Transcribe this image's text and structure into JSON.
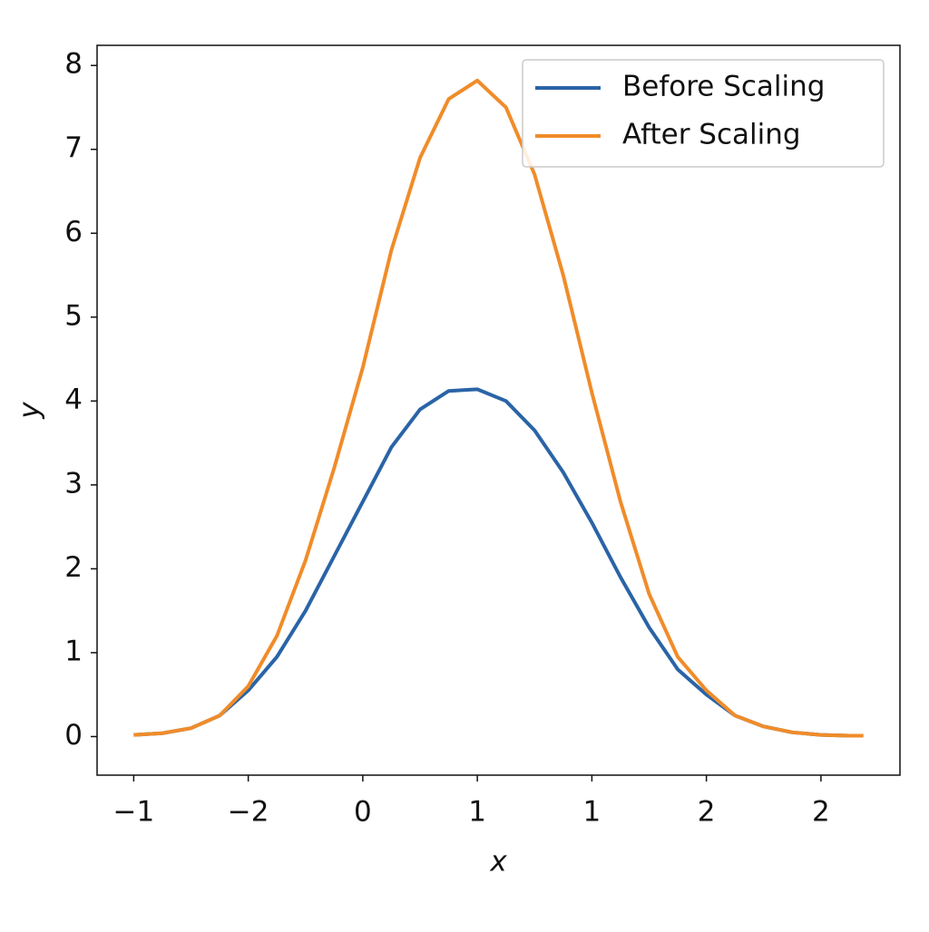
{
  "chart_data": {
    "type": "line",
    "x": [
      0,
      0.25,
      0.5,
      0.75,
      1.0,
      1.25,
      1.5,
      1.75,
      2.0,
      2.25,
      2.5,
      2.75,
      3.0,
      3.25,
      3.5,
      3.75,
      4.0,
      4.25,
      4.5,
      4.75,
      5.0,
      5.25,
      5.5,
      5.75,
      6.0,
      6.25,
      6.37
    ],
    "series": [
      {
        "name": "Before Scaling",
        "color": "#2a64a6",
        "values": [
          0.02,
          0.04,
          0.1,
          0.25,
          0.55,
          0.95,
          1.5,
          2.15,
          2.8,
          3.45,
          3.9,
          4.12,
          4.14,
          4.0,
          3.65,
          3.15,
          2.55,
          1.9,
          1.3,
          0.8,
          0.5,
          0.25,
          0.12,
          0.05,
          0.02,
          0.01,
          0.01
        ]
      },
      {
        "name": "After Scaling",
        "color": "#f08c2a",
        "values": [
          0.02,
          0.04,
          0.1,
          0.25,
          0.6,
          1.2,
          2.1,
          3.2,
          4.4,
          5.8,
          6.9,
          7.6,
          7.82,
          7.5,
          6.7,
          5.5,
          4.1,
          2.8,
          1.7,
          0.95,
          0.55,
          0.25,
          0.12,
          0.05,
          0.02,
          0.01,
          0.01
        ]
      }
    ],
    "x_label": "x",
    "y_label": "y",
    "xlim": [
      -0.32,
      6.69
    ],
    "ylim": [
      -0.46,
      8.24
    ],
    "xticks": [
      {
        "value": 0,
        "label": "−1"
      },
      {
        "value": 1,
        "label": "−2"
      },
      {
        "value": 2,
        "label": "0"
      },
      {
        "value": 3,
        "label": "1"
      },
      {
        "value": 4,
        "label": "1"
      },
      {
        "value": 5,
        "label": "2"
      },
      {
        "value": 6,
        "label": "2"
      }
    ],
    "yticks": [
      0,
      1,
      2,
      3,
      4,
      5,
      6,
      7,
      8
    ],
    "legend": "upper-right",
    "grid": false
  }
}
